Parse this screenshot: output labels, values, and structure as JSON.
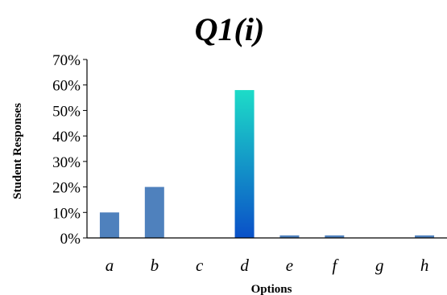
{
  "chart_data": {
    "type": "bar",
    "title": "Q1(i)",
    "xlabel": "Options",
    "ylabel": "Student Responses",
    "categories": [
      "a",
      "b",
      "c",
      "d",
      "e",
      "f",
      "g",
      "h"
    ],
    "values": [
      10,
      20,
      0,
      58,
      1,
      1,
      0,
      1
    ],
    "ylim": [
      0,
      70
    ],
    "yticks": [
      "0%",
      "10%",
      "20%",
      "30%",
      "40%",
      "50%",
      "60%",
      "70%"
    ],
    "grid": false,
    "legend": "none",
    "highlight_index": 3,
    "colors": {
      "bar": "#4f81bd",
      "highlight_top": "#1ddcc8",
      "highlight_bottom": "#0a50c8",
      "axis": "#000000"
    }
  }
}
